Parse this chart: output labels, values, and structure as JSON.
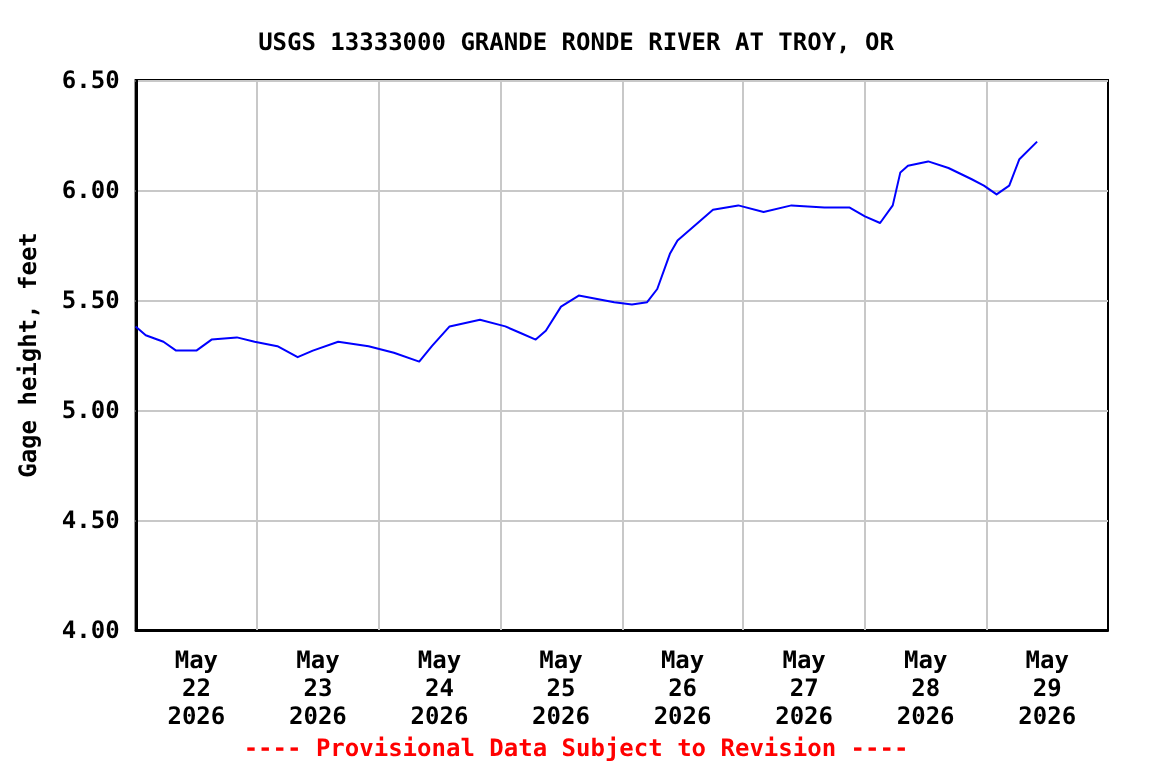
{
  "chart_data": {
    "type": "line",
    "title": "USGS 13333000 GRANDE RONDE RIVER AT TROY, OR",
    "ylabel": "Gage height, feet",
    "annotations": [
      "---- Provisional Data Subject to Revision ----"
    ],
    "x": [
      "2026-05-22T00:00",
      "2026-05-22T02:00",
      "2026-05-22T05:30",
      "2026-05-22T08:00",
      "2026-05-22T12:00",
      "2026-05-22T15:00",
      "2026-05-22T20:00",
      "2026-05-22T23:30",
      "2026-05-23T04:00",
      "2026-05-23T08:00",
      "2026-05-23T11:00",
      "2026-05-23T16:00",
      "2026-05-23T22:00",
      "2026-05-24T03:00",
      "2026-05-24T08:00",
      "2026-05-24T10:30",
      "2026-05-24T14:00",
      "2026-05-24T20:00",
      "2026-05-25T01:00",
      "2026-05-25T04:00",
      "2026-05-25T07:00",
      "2026-05-25T09:00",
      "2026-05-25T12:00",
      "2026-05-25T15:30",
      "2026-05-25T22:30",
      "2026-05-26T02:00",
      "2026-05-26T05:00",
      "2026-05-26T07:00",
      "2026-05-26T09:30",
      "2026-05-26T11:00",
      "2026-05-26T15:30",
      "2026-05-26T18:00",
      "2026-05-26T23:00",
      "2026-05-27T04:00",
      "2026-05-27T09:30",
      "2026-05-27T16:00",
      "2026-05-27T21:00",
      "2026-05-28T00:00",
      "2026-05-28T03:00",
      "2026-05-28T05:30",
      "2026-05-28T07:00",
      "2026-05-28T08:30",
      "2026-05-28T12:30",
      "2026-05-28T16:30",
      "2026-05-28T21:00",
      "2026-05-28T23:30",
      "2026-05-29T02:00",
      "2026-05-29T04:30",
      "2026-05-29T06:30",
      "2026-05-29T10:00"
    ],
    "series": [
      {
        "color": "#0000ff",
        "values": [
          5.38,
          5.34,
          5.31,
          5.27,
          5.27,
          5.32,
          5.33,
          5.31,
          5.29,
          5.24,
          5.27,
          5.31,
          5.29,
          5.26,
          5.22,
          5.29,
          5.38,
          5.41,
          5.38,
          5.35,
          5.32,
          5.36,
          5.47,
          5.52,
          5.49,
          5.48,
          5.49,
          5.55,
          5.71,
          5.77,
          5.86,
          5.91,
          5.93,
          5.9,
          5.93,
          5.92,
          5.92,
          5.88,
          5.85,
          5.93,
          6.08,
          6.11,
          6.13,
          6.1,
          6.05,
          6.02,
          5.98,
          6.02,
          6.14,
          6.22
        ]
      }
    ],
    "xlim": [
      "2026-05-22T00:00",
      "2026-05-30T00:00"
    ],
    "xticks": [
      {
        "value": "2026-05-22T12:00",
        "label": "May 22 2026"
      },
      {
        "value": "2026-05-23T00:00",
        "label": null
      },
      {
        "value": "2026-05-23T12:00",
        "label": "May 23 2026"
      },
      {
        "value": "2026-05-24T00:00",
        "label": null
      },
      {
        "value": "2026-05-24T12:00",
        "label": "May 24 2026"
      },
      {
        "value": "2026-05-25T00:00",
        "label": null
      },
      {
        "value": "2026-05-25T12:00",
        "label": "May 25 2026"
      },
      {
        "value": "2026-05-26T00:00",
        "label": null
      },
      {
        "value": "2026-05-26T12:00",
        "label": "May 26 2026"
      },
      {
        "value": "2026-05-27T00:00",
        "label": null
      },
      {
        "value": "2026-05-27T12:00",
        "label": "May 27 2026"
      },
      {
        "value": "2026-05-28T00:00",
        "label": null
      },
      {
        "value": "2026-05-28T12:00",
        "label": "May 28 2026"
      },
      {
        "value": "2026-05-29T00:00",
        "label": null
      },
      {
        "value": "2026-05-29T12:00",
        "label": "May 29 2026"
      }
    ],
    "ylim": [
      4,
      6.5
    ],
    "yticks": [
      {
        "value": 4,
        "label": "4.00"
      },
      {
        "value": 4.5,
        "label": "4.50"
      },
      {
        "value": 5,
        "label": "5.00"
      },
      {
        "value": 5.5,
        "label": "5.50"
      },
      {
        "value": 6,
        "label": "6.00"
      },
      {
        "value": 6.5,
        "label": "6.50"
      }
    ],
    "grid": true,
    "marker": "none",
    "line_style": "solid"
  }
}
